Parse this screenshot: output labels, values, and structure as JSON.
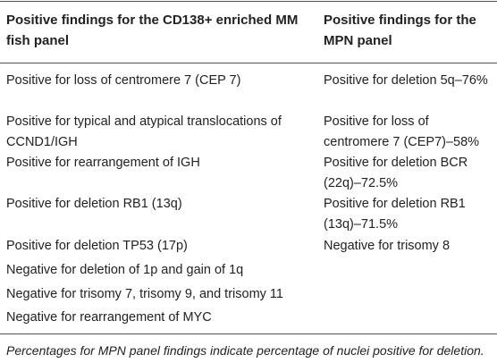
{
  "table": {
    "headers": {
      "left": "Positive findings for the CD138+ enriched MM fish panel",
      "right": "Positive findings for the MPN panel"
    },
    "left_column": [
      "Positive for loss of centromere 7 (CEP 7)",
      "Positive for typical and atypical translocations of CCND1/IGH",
      "Positive for rearrangement of IGH",
      "Positive for deletion RB1 (13q)",
      "Positive for deletion TP53 (17p)",
      "Negative for deletion of 1p and gain of 1q",
      "Negative for trisomy 7, trisomy 9, and trisomy 11",
      "Negative for rearrangement of MYC"
    ],
    "right_column": [
      "Positive for deletion 5q–76%",
      "Positive for loss of centromere 7 (CEP7)–58%",
      "Positive for deletion BCR (22q)–72.5%",
      "Positive for deletion RB1 (13q)–71.5%",
      "Negative for trisomy 8"
    ],
    "footnote": "Percentages for MPN panel findings indicate percentage of nuclei positive for deletion."
  }
}
